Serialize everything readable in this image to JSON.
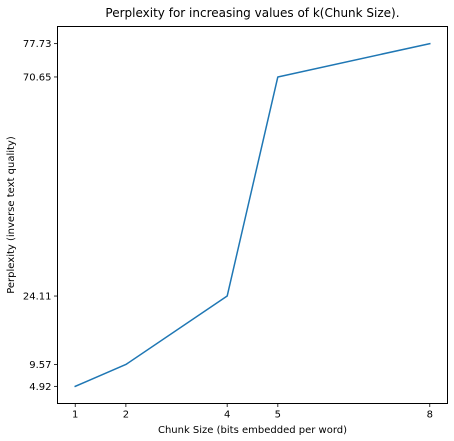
{
  "chart_data": {
    "type": "line",
    "title": "Perplexity for increasing values of k(Chunk Size).",
    "xlabel": "Chunk Size (bits embedded per word)",
    "ylabel": "Perplexity (inverse text quality)",
    "x": [
      1,
      2,
      4,
      5,
      8
    ],
    "series": [
      {
        "values": [
          4.92,
          9.57,
          24.11,
          70.65,
          77.73
        ]
      }
    ],
    "xticks": [
      1,
      2,
      4,
      5,
      8
    ],
    "xtick_labels": [
      "1",
      "2",
      "4",
      "5",
      "8"
    ],
    "yticks": [
      4.92,
      9.57,
      24.11,
      70.65,
      77.73
    ],
    "ytick_labels": [
      "4.92",
      "9.57",
      "24.11",
      "70.65",
      "77.73"
    ],
    "xlim": [
      0.65,
      8.35
    ],
    "ylim": [
      1.28,
      81.37
    ],
    "grid": false,
    "legend": false,
    "line_color": "#1f77b4"
  }
}
